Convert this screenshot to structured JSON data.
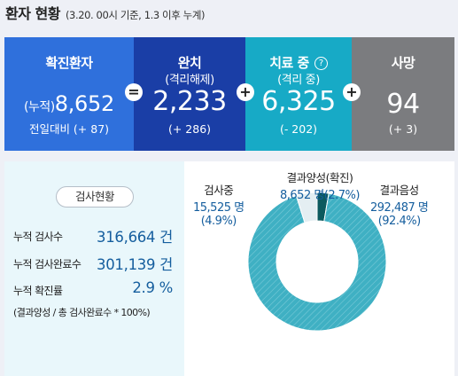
{
  "header": {
    "title": "환자 현황",
    "subtitle": "(3.20. 00시 기준, 1.3 이후 누계)"
  },
  "stats": {
    "confirmed": {
      "label": "확진환자",
      "prefix": "(누적)",
      "value": "8,652",
      "change": "전일대비 (+ 87)",
      "color": "#2f70dc"
    },
    "released": {
      "label": "완치",
      "sublabel": "(격리해제)",
      "value": "2,233",
      "change": "(+ 286)",
      "color": "#1a3ea6"
    },
    "treatment": {
      "label": "치료 중",
      "sublabel": "(격리 중)",
      "value": "6,325",
      "change": "(- 202)",
      "color": "#17aac6",
      "help_icon": "question-circle-icon"
    },
    "deaths": {
      "label": "사망",
      "value": "94",
      "change": "(+ 3)",
      "color": "#7b7c7f"
    },
    "operators": [
      "=",
      "+",
      "+"
    ]
  },
  "tests": {
    "title": "검사현황",
    "rows": [
      {
        "label": "누적 검사수",
        "value": "316,664 건"
      },
      {
        "label": "누적 검사완료수",
        "value": "301,139 건"
      },
      {
        "label": "누적 확진률",
        "value": "2.9 %"
      }
    ],
    "note": "(결과양성 / 총 검사완료수 * 100%)"
  },
  "donut": {
    "segments": [
      {
        "label": "결과양성(확진)",
        "count_text": "8,652 명(2.7%)",
        "percent": 2.7,
        "color": "#0c5a5e"
      },
      {
        "label": "결과음성",
        "count_text": "292,487 명",
        "pct_text": "(92.4%)",
        "percent": 92.4,
        "color": "#3fb0c3"
      },
      {
        "label": "검사중",
        "count_text": "15,525 명",
        "pct_text": "(4.9%)",
        "percent": 4.9,
        "color": "#e4eef2"
      }
    ]
  }
}
